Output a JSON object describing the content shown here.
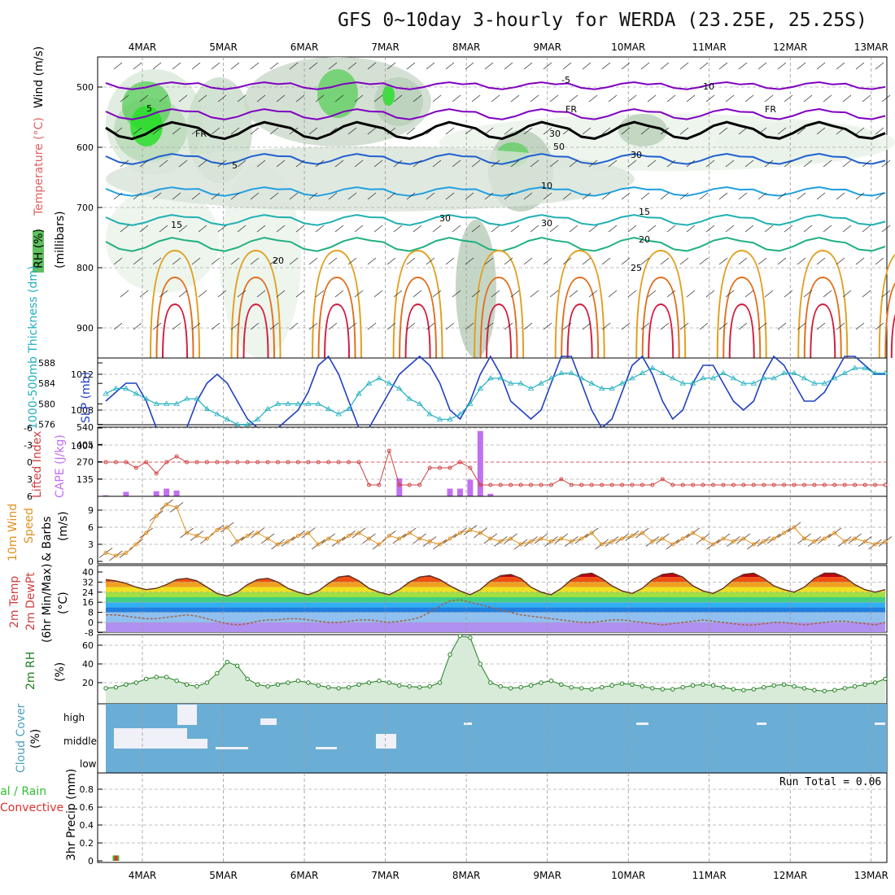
{
  "title": "GFS 0~10day 3-hourly for WERDA (23.25E, 25.25S)",
  "dates": [
    "4MAR",
    "5MAR",
    "6MAR",
    "7MAR",
    "8MAR",
    "9MAR",
    "10MAR",
    "11MAR",
    "12MAR",
    "13MAR"
  ],
  "colors": {
    "temp_freeze": "#000000",
    "temp_neg": "#8000c0",
    "temp_5": "#2060d0",
    "temp_10": "#20a0e0",
    "temp_15": "#20b0b0",
    "temp_20": "#20b080",
    "temp_25": "#e0a020",
    "slp": "#2040c0",
    "thickness": "#20b0c0",
    "lifted": "#d04040",
    "cape": "#c070f0",
    "wind": "#e09020",
    "rh": "#208020",
    "cloud": "#6aaed6",
    "precip_total": "#30c030",
    "precip_conv": "#e03030"
  },
  "panel1": {
    "ylabels": [
      "RH (%)",
      "Temperature (°C)",
      "Wind (m/s)"
    ],
    "unit": "(millibars)",
    "yticks": [
      "500",
      "600",
      "700",
      "800",
      "900"
    ],
    "contour_labels": [
      "-5",
      "5",
      "FR",
      "FR",
      "FR",
      "5",
      "10",
      "15",
      "15",
      "20",
      "20",
      "25",
      "30",
      "30",
      "30",
      "50",
      "30",
      "-10"
    ]
  },
  "panel2": {
    "ylabel_left": "1000-500mb Thickness (dm)",
    "ylabel_right": "SLP (mb)",
    "ticks_left": [
      "588",
      "584",
      "580",
      "576"
    ],
    "ticks_right": [
      "1012",
      "1008",
      "1004"
    ]
  },
  "panel3": {
    "ylabel_left": "Lifted Index",
    "ylabel_right": "CAPE (J/kg)",
    "ticks_left": [
      "-6",
      "-3",
      "0",
      "3",
      "6"
    ],
    "ticks_right": [
      "540",
      "405",
      "270",
      "135"
    ]
  },
  "panel4": {
    "ylabel_left": "10m Wind",
    "ylabel_mid": "Speed",
    "ylabel_right": "& Barbs",
    "unit": "(m/s)",
    "ticks": [
      "9",
      "6",
      "3",
      "0"
    ]
  },
  "panel5": {
    "ylabel_left": "2m Temp",
    "ylabel_mid": "2m DewPt",
    "ylabel_right": "(6hr Min/Max)",
    "unit": "(°C)",
    "ticks": [
      "40",
      "32",
      "24",
      "16",
      "8",
      "0",
      "-8"
    ]
  },
  "panel6": {
    "ylabel": "2m RH",
    "unit": "(%)",
    "ticks": [
      "60",
      "40",
      "20"
    ]
  },
  "panel7": {
    "ylabel": "Cloud Cover",
    "unit": "(%)",
    "levels": [
      "high",
      "middle",
      "low"
    ]
  },
  "panel8": {
    "ylabel_left": "Total / Rain",
    "ylabel_mid": "Convective",
    "ylabel_right": "3hr Precip (mm)",
    "ticks": [
      "0.8",
      "0.6",
      "0.4",
      "0.2",
      "0"
    ],
    "run_total": "Run Total = 0.06"
  },
  "chart_data": {
    "type": "line",
    "x": [
      "4MAR 00",
      "4MAR 03",
      "4MAR 06",
      "4MAR 09",
      "4MAR 12",
      "4MAR 15",
      "4MAR 18",
      "4MAR 21",
      "5MAR 00",
      "5MAR 03",
      "5MAR 06",
      "5MAR 09",
      "5MAR 12",
      "5MAR 15",
      "5MAR 18",
      "5MAR 21",
      "6MAR 00",
      "6MAR 03",
      "6MAR 06",
      "6MAR 09",
      "6MAR 12",
      "6MAR 15",
      "6MAR 18",
      "6MAR 21",
      "7MAR 00",
      "7MAR 03",
      "7MAR 06",
      "7MAR 09",
      "7MAR 12",
      "7MAR 15",
      "7MAR 18",
      "7MAR 21",
      "8MAR 00",
      "8MAR 03",
      "8MAR 06",
      "8MAR 09",
      "8MAR 12",
      "8MAR 15",
      "8MAR 18",
      "8MAR 21",
      "9MAR 00",
      "9MAR 03",
      "9MAR 06",
      "9MAR 09",
      "9MAR 12",
      "9MAR 15",
      "9MAR 18",
      "9MAR 21",
      "10MAR 00",
      "10MAR 03",
      "10MAR 06",
      "10MAR 09",
      "10MAR 12",
      "10MAR 15",
      "10MAR 18",
      "10MAR 21",
      "11MAR 00",
      "11MAR 03",
      "11MAR 06",
      "11MAR 09",
      "11MAR 12",
      "11MAR 15",
      "11MAR 18",
      "11MAR 21",
      "12MAR 00",
      "12MAR 03",
      "12MAR 06",
      "12MAR 09",
      "12MAR 12",
      "12MAR 15",
      "12MAR 18",
      "12MAR 21",
      "13MAR 00",
      "13MAR 03",
      "13MAR 06",
      "13MAR 09",
      "13MAR 12",
      "13MAR 15"
    ],
    "series": [
      {
        "name": "SLP (mb)",
        "values": [
          1009,
          1010,
          1011,
          1011,
          1009,
          1006,
          1004,
          1003,
          1006,
          1009,
          1011,
          1012,
          1011,
          1009,
          1007,
          1006,
          1006,
          1006,
          1007,
          1008,
          1010,
          1013,
          1014,
          1012,
          1009,
          1006,
          1006,
          1008,
          1010,
          1012,
          1013,
          1014,
          1013,
          1011,
          1008,
          1007,
          1009,
          1012,
          1014,
          1012,
          1009,
          1008,
          1007,
          1008,
          1011,
          1014,
          1014,
          1011,
          1008,
          1006,
          1007,
          1010,
          1013,
          1014,
          1012,
          1009,
          1007,
          1008,
          1011,
          1013,
          1013,
          1011,
          1009,
          1008,
          1009,
          1012,
          1014,
          1013,
          1011,
          1009,
          1009,
          1010,
          1012,
          1014,
          1014,
          1013,
          1012,
          1012
        ]
      },
      {
        "name": "1000-500mb Thickness (dm)",
        "values": [
          582,
          583,
          583,
          582,
          581,
          580,
          580,
          580,
          581,
          581,
          579,
          578,
          577,
          576,
          576,
          577,
          579,
          580,
          580,
          580,
          580,
          580,
          579,
          578,
          579,
          582,
          584,
          585,
          584,
          583,
          581,
          580,
          578,
          577,
          577,
          578,
          580,
          583,
          585,
          585,
          584,
          584,
          583,
          584,
          585,
          586,
          586,
          585,
          584,
          583,
          583,
          584,
          585,
          586,
          587,
          586,
          585,
          584,
          584,
          585,
          585,
          586,
          585,
          584,
          584,
          585,
          585,
          586,
          586,
          585,
          584,
          584,
          585,
          586,
          587,
          587,
          586,
          586
        ]
      },
      {
        "name": "Lifted Index",
        "values": [
          0,
          0,
          0,
          1,
          0,
          2,
          0,
          -1,
          0,
          0,
          0,
          0,
          0,
          0,
          0,
          0,
          0,
          0,
          0,
          0,
          0,
          0,
          0,
          0,
          0,
          0,
          4,
          4,
          -2,
          4,
          4,
          4,
          1,
          1,
          1,
          0,
          1,
          4,
          4,
          4,
          4,
          4,
          4,
          4,
          4,
          3,
          4,
          4,
          4,
          4,
          4,
          4,
          4,
          4,
          4,
          3,
          4,
          4,
          4,
          4,
          4,
          4,
          4,
          4,
          4,
          4,
          4,
          4,
          4,
          4,
          4,
          4,
          4,
          4,
          4,
          4,
          4,
          4
        ]
      },
      {
        "name": "CAPE (J/kg)",
        "values": [
          8,
          0,
          35,
          0,
          0,
          40,
          60,
          45,
          0,
          0,
          0,
          0,
          0,
          0,
          0,
          0,
          0,
          0,
          0,
          0,
          0,
          0,
          0,
          0,
          0,
          0,
          0,
          0,
          0,
          140,
          0,
          0,
          0,
          0,
          60,
          60,
          130,
          510,
          20,
          0,
          0,
          0,
          0,
          0,
          0,
          0,
          0,
          0,
          0,
          0,
          0,
          0,
          0,
          0,
          0,
          0,
          0,
          0,
          0,
          0,
          0,
          0,
          0,
          0,
          0,
          0,
          0,
          0,
          0,
          0,
          0,
          0,
          0,
          0,
          0,
          0,
          0,
          0
        ]
      },
      {
        "name": "10m Wind Speed (m/s)",
        "values": [
          1.5,
          1,
          1.5,
          3,
          5,
          8,
          10,
          9.5,
          5,
          4.5,
          4,
          5.5,
          6,
          3.5,
          4.5,
          5,
          4,
          3,
          3.5,
          4.5,
          5,
          3,
          4,
          3.5,
          4.5,
          5,
          4,
          3,
          4.5,
          4,
          5,
          4,
          3.5,
          3,
          4,
          5,
          5.5,
          5,
          4,
          3.5,
          4,
          3,
          3.5,
          4,
          3.5,
          4,
          3.5,
          4,
          5,
          3,
          3.5,
          4,
          4.5,
          5,
          3.5,
          4,
          3,
          4,
          5,
          4,
          3,
          4,
          3.5,
          4,
          3,
          3.5,
          4,
          5,
          6,
          4,
          3.5,
          4,
          5,
          3.5,
          4,
          3.5,
          3,
          3.5
        ]
      },
      {
        "name": "2m Temp (°C)",
        "values": [
          34,
          33,
          31,
          28,
          26,
          27,
          30,
          34,
          35,
          33,
          28,
          23,
          21,
          24,
          30,
          34,
          35,
          32,
          27,
          24,
          22,
          25,
          31,
          36,
          37,
          33,
          27,
          24,
          22,
          26,
          32,
          36,
          37,
          34,
          29,
          25,
          22,
          26,
          33,
          37,
          38,
          35,
          28,
          24,
          22,
          27,
          34,
          38,
          39,
          35,
          29,
          25,
          23,
          27,
          34,
          38,
          39,
          36,
          29,
          25,
          23,
          27,
          34,
          38,
          39,
          35,
          29,
          26,
          24,
          28,
          35,
          39,
          39,
          36,
          30,
          26,
          24,
          26
        ]
      },
      {
        "name": "2m DewPt (°C)",
        "values": [
          6,
          6,
          5,
          4,
          3,
          3,
          4,
          5,
          6,
          5,
          3,
          1,
          -1,
          -2,
          -1,
          1,
          2,
          2,
          3,
          3,
          2,
          1,
          0,
          0,
          1,
          2,
          2,
          1,
          0,
          1,
          2,
          4,
          8,
          13,
          17,
          18,
          16,
          14,
          12,
          10,
          8,
          6,
          5,
          4,
          3,
          2,
          1,
          0,
          0,
          1,
          2,
          2,
          1,
          0,
          -1,
          -2,
          -1,
          0,
          1,
          2,
          1,
          0,
          -1,
          -2,
          -2,
          -1,
          0,
          0,
          -1,
          -2,
          -1,
          0,
          1,
          1,
          0,
          -1,
          -2,
          0
        ]
      },
      {
        "name": "2m RH (%)",
        "values": [
          14,
          15,
          18,
          20,
          24,
          26,
          26,
          22,
          18,
          16,
          20,
          30,
          42,
          38,
          24,
          18,
          16,
          18,
          20,
          22,
          20,
          17,
          15,
          14,
          15,
          18,
          20,
          22,
          20,
          17,
          16,
          15,
          16,
          20,
          50,
          70,
          68,
          40,
          20,
          16,
          14,
          15,
          17,
          20,
          22,
          18,
          15,
          14,
          13,
          15,
          17,
          19,
          18,
          16,
          14,
          13,
          13,
          15,
          17,
          18,
          17,
          15,
          13,
          12,
          13,
          15,
          17,
          18,
          16,
          14,
          12,
          11,
          12,
          14,
          16,
          18,
          20,
          24
        ]
      },
      {
        "name": "3hr Precip (mm)",
        "values": [
          0,
          0.06,
          0,
          0,
          0,
          0,
          0,
          0,
          0,
          0,
          0,
          0,
          0,
          0,
          0,
          0,
          0,
          0,
          0,
          0,
          0,
          0,
          0,
          0,
          0,
          0,
          0,
          0,
          0,
          0,
          0,
          0,
          0,
          0,
          0,
          0,
          0,
          0,
          0,
          0,
          0,
          0,
          0,
          0,
          0,
          0,
          0,
          0,
          0,
          0,
          0,
          0,
          0,
          0,
          0,
          0,
          0,
          0,
          0,
          0,
          0,
          0,
          0,
          0,
          0,
          0,
          0,
          0,
          0,
          0,
          0,
          0,
          0,
          0,
          0,
          0,
          0,
          0
        ]
      }
    ]
  }
}
